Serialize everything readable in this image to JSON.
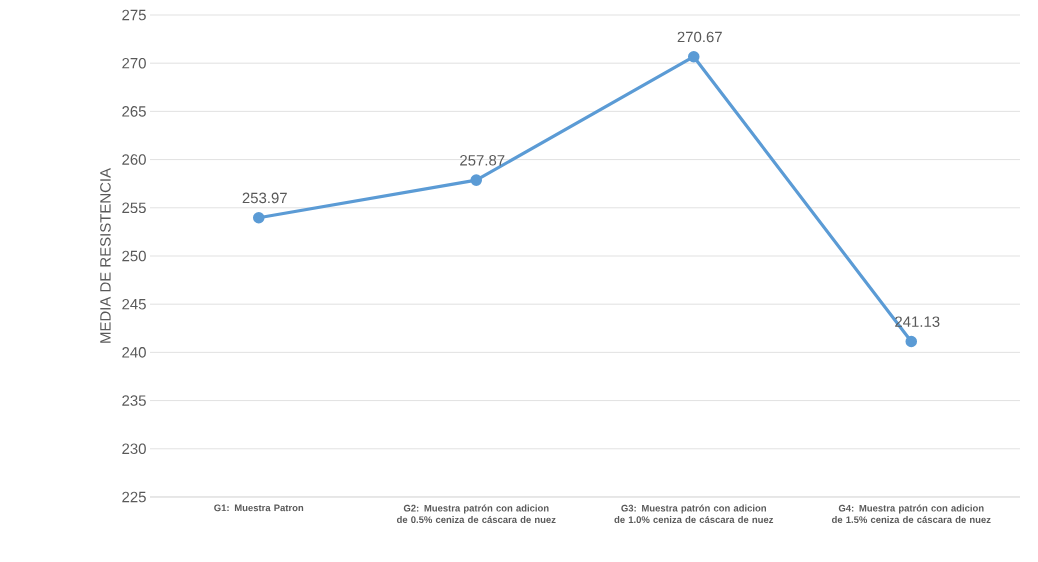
{
  "chart_data": {
    "type": "line",
    "ylabel": "MEDIA DE RESISTENCIA",
    "categories": [
      "G1: Muestra Patron",
      "G2: Muestra patrón con adicion de 0.5% ceniza de cáscara de nuez",
      "G3:  Muestra patrón con adicion de 1.0% ceniza de cáscara de nuez",
      "G4:  Muestra patrón con adicion de 1.5% ceniza de cáscara de nuez"
    ],
    "series": [
      {
        "color": "#5b9bd5",
        "values": [
          253.97,
          257.87,
          270.67,
          241.13
        ]
      }
    ],
    "ylim": [
      225,
      275
    ],
    "yticks": [
      225,
      230,
      235,
      240,
      245,
      250,
      255,
      260,
      265,
      270,
      275
    ],
    "grid": "y",
    "marker": "circle",
    "line_style": "solid",
    "data_labels": true
  }
}
